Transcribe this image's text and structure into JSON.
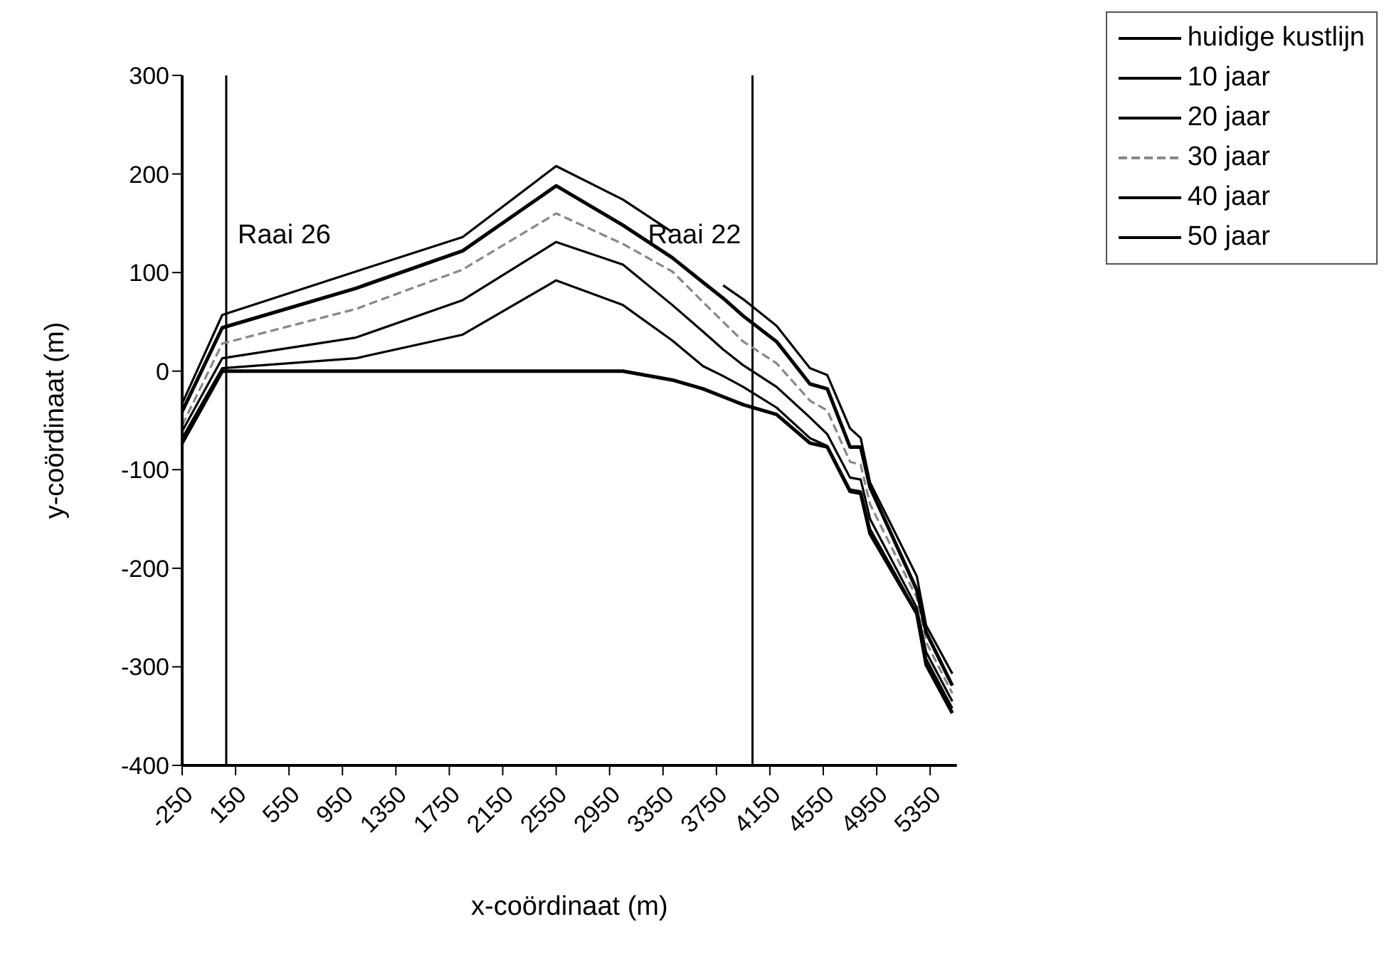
{
  "chart_data": {
    "type": "line",
    "xlabel": "x-coördinaat (m)",
    "ylabel": "y-coördinaat (m)",
    "x": [
      -250,
      50,
      1050,
      1850,
      2550,
      3050,
      3420,
      3650,
      3800,
      3950,
      4200,
      4450,
      4580,
      4750,
      4830,
      4900,
      5250,
      5320,
      5516
    ],
    "series": [
      {
        "name": "huidige kustlijn",
        "color": "#000000",
        "values": [
          -73,
          0,
          0,
          0,
          0,
          0,
          -9,
          -18,
          -26,
          -34,
          -44,
          -73,
          -77,
          -122,
          -124,
          -165,
          -246,
          -298,
          -347
        ]
      },
      {
        "name": "10 jaar",
        "color": "#000000",
        "values": [
          -68,
          3,
          13,
          37,
          92,
          67,
          31,
          5,
          -5,
          -16,
          -37,
          -68,
          -76,
          -120,
          -122,
          -160,
          -245,
          -292,
          -342
        ]
      },
      {
        "name": "20 jaar",
        "color": "#000000",
        "values": [
          -61,
          13,
          34,
          72,
          131,
          108,
          67,
          40,
          22,
          6,
          -16,
          -47,
          -64,
          -108,
          -110,
          -150,
          -240,
          -285,
          -335
        ]
      },
      {
        "name": "30 jaar",
        "color": "#888888",
        "line_style": "dashed",
        "values": [
          -55,
          28,
          63,
          103,
          160,
          129,
          101,
          70,
          50,
          30,
          8,
          -30,
          -40,
          -92,
          -95,
          -135,
          -230,
          -275,
          -327
        ]
      },
      {
        "name": "40 jaar",
        "color": "#000000",
        "values": [
          -41,
          44,
          84,
          122,
          188,
          148,
          115,
          90,
          74,
          56,
          30,
          -13,
          -18,
          -77,
          -77,
          -118,
          -222,
          -265,
          -319
        ]
      },
      {
        "name": "50 jaar",
        "color": "#000000",
        "values": [
          -33,
          57,
          101,
          136,
          208,
          174,
          141,
          null,
          87,
          73,
          46,
          3,
          -4,
          -58,
          -68,
          -113,
          -208,
          -258,
          -307
        ]
      }
    ],
    "xlim": [
      -250,
      5550
    ],
    "xticks": [
      -250,
      150,
      550,
      950,
      1350,
      1750,
      2150,
      2550,
      2950,
      3350,
      3750,
      4150,
      4550,
      4950,
      5350
    ],
    "ylim": [
      -400,
      300
    ],
    "yticks": [
      -400,
      -300,
      -200,
      -100,
      0,
      100,
      200,
      300
    ],
    "ref_lines": [
      {
        "axis": "x",
        "value": 80,
        "label": "Raai 26",
        "color": "#000000"
      },
      {
        "axis": "x",
        "value": 4020,
        "label": "Raai 22",
        "color": "#000000"
      }
    ],
    "grid": false,
    "legend": "top right",
    "marker": "none",
    "line_style": "solid"
  }
}
